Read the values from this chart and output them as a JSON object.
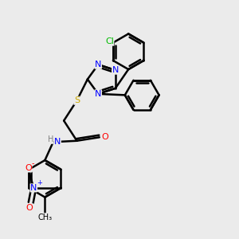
{
  "background_color": "#ebebeb",
  "atom_colors": {
    "N": "#0000ff",
    "O": "#ff0000",
    "S": "#ccaa00",
    "Cl": "#00bb00",
    "C": "#000000",
    "H": "#808080"
  },
  "bond_color": "#000000",
  "bond_width": 1.8,
  "figsize": [
    3.0,
    3.0
  ],
  "dpi": 100
}
